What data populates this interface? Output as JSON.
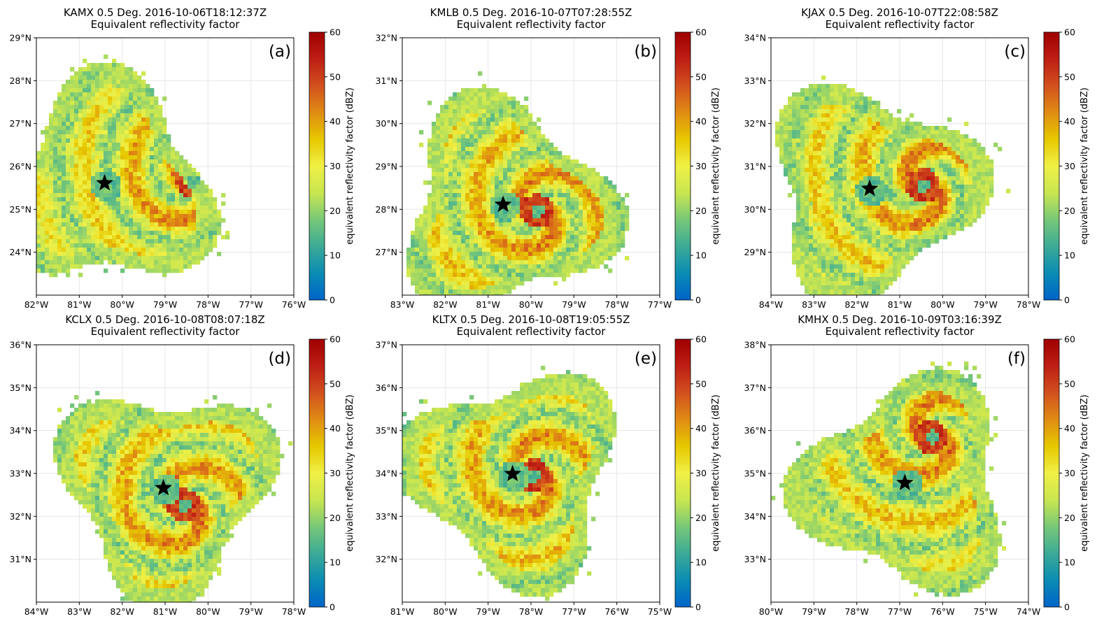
{
  "colorbar": {
    "label": "equivalent reflectivity factor (dBZ)",
    "ticks": [
      0,
      10,
      20,
      30,
      40,
      50,
      60
    ],
    "range": [
      0,
      60
    ],
    "colormap": [
      "#0064c8",
      "#0a8cb4",
      "#3caa96",
      "#78c878",
      "#c8e650",
      "#f0f046",
      "#e6c800",
      "#e08c14",
      "#d2501e",
      "#be1e14",
      "#a00000"
    ]
  },
  "panels": [
    {
      "id": "a",
      "label": "(a)",
      "title_line1": "KAMX 0.5 Deg. 2016-10-06T18:12:37Z",
      "title_line2": "Equivalent reflectivity factor",
      "lon_ticks": [
        "82°W",
        "81°W",
        "80°W",
        "79°W",
        "78°W",
        "77°W",
        "76°W"
      ],
      "lat_ticks": [
        "24°N",
        "25°N",
        "26°N",
        "27°N",
        "28°N",
        "29°N"
      ],
      "lon_range": [
        -82,
        -76
      ],
      "lat_range": [
        23,
        29
      ],
      "radar_site": {
        "lon": -80.41,
        "lat": 25.61
      },
      "eye": {
        "lon": -78.4,
        "lat": 25.7
      }
    },
    {
      "id": "b",
      "label": "(b)",
      "title_line1": "KMLB 0.5 Deg. 2016-10-07T07:28:55Z",
      "title_line2": "Equivalent reflectivity factor",
      "lon_ticks": [
        "83°W",
        "82°W",
        "81°W",
        "80°W",
        "79°W",
        "78°W",
        "77°W"
      ],
      "lat_ticks": [
        "27°N",
        "28°N",
        "29°N",
        "30°N",
        "31°N",
        "32°N"
      ],
      "lon_range": [
        -83,
        -77
      ],
      "lat_range": [
        26,
        32
      ],
      "radar_site": {
        "lon": -80.65,
        "lat": 28.11
      },
      "eye": {
        "lon": -79.9,
        "lat": 28.0
      }
    },
    {
      "id": "c",
      "label": "(c)",
      "title_line1": "KJAX 0.5 Deg. 2016-10-07T22:08:58Z",
      "title_line2": "Equivalent reflectivity factor",
      "lon_ticks": [
        "84°W",
        "83°W",
        "82°W",
        "81°W",
        "80°W",
        "79°W",
        "78°W"
      ],
      "lat_ticks": [
        "29°N",
        "30°N",
        "31°N",
        "32°N",
        "33°N",
        "34°N"
      ],
      "lon_range": [
        -84,
        -78
      ],
      "lat_range": [
        28,
        34
      ],
      "radar_site": {
        "lon": -81.7,
        "lat": 30.48
      },
      "eye": {
        "lon": -80.5,
        "lat": 30.6
      }
    },
    {
      "id": "d",
      "label": "(d)",
      "title_line1": "KCLX 0.5 Deg. 2016-10-08T08:07:18Z",
      "title_line2": "Equivalent reflectivity factor",
      "lon_ticks": [
        "84°W",
        "83°W",
        "82°W",
        "81°W",
        "80°W",
        "79°W",
        "78°W"
      ],
      "lat_ticks": [
        "31°N",
        "32°N",
        "33°N",
        "34°N",
        "35°N",
        "36°N"
      ],
      "lon_range": [
        -84,
        -78
      ],
      "lat_range": [
        30,
        36
      ],
      "radar_site": {
        "lon": -81.04,
        "lat": 32.66
      },
      "eye": {
        "lon": -80.6,
        "lat": 32.3
      }
    },
    {
      "id": "e",
      "label": "(e)",
      "title_line1": "KLTX 0.5 Deg. 2016-10-08T19:05:55Z",
      "title_line2": "Equivalent reflectivity factor",
      "lon_ticks": [
        "81°W",
        "80°W",
        "79°W",
        "78°W",
        "77°W",
        "76°W",
        "75°W"
      ],
      "lat_ticks": [
        "32°N",
        "33°N",
        "34°N",
        "35°N",
        "36°N",
        "37°N"
      ],
      "lon_range": [
        -81,
        -75
      ],
      "lat_range": [
        31,
        37
      ],
      "radar_site": {
        "lon": -78.43,
        "lat": 33.99
      },
      "eye": {
        "lon": -78.0,
        "lat": 34.0
      }
    },
    {
      "id": "f",
      "label": "(f)",
      "title_line1": "KMHX 0.5 Deg. 2016-10-09T03:16:39Z",
      "title_line2": "Equivalent reflectivity factor",
      "lon_ticks": [
        "80°W",
        "79°W",
        "78°W",
        "77°W",
        "76°W",
        "75°W",
        "74°W"
      ],
      "lat_ticks": [
        "33°N",
        "34°N",
        "35°N",
        "36°N",
        "37°N",
        "38°N"
      ],
      "lon_range": [
        -80,
        -74
      ],
      "lat_range": [
        32,
        38
      ],
      "radar_site": {
        "lon": -76.88,
        "lat": 34.78
      },
      "eye": {
        "lon": -76.3,
        "lat": 35.9
      }
    }
  ]
}
